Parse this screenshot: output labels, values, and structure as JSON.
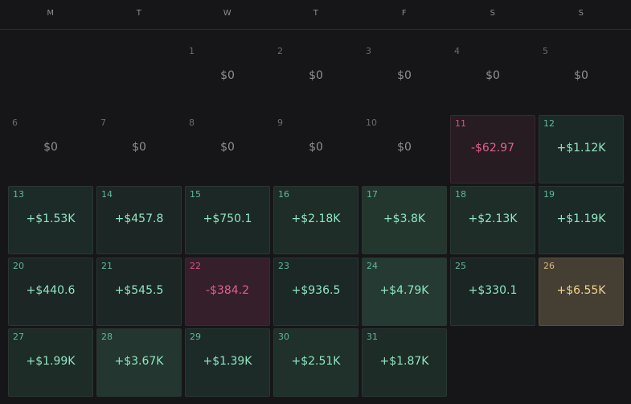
{
  "weekdays": [
    "M",
    "T",
    "W",
    "T",
    "F",
    "S",
    "S"
  ],
  "days": [
    {
      "day": "1",
      "amount": "$0",
      "tone": "zero",
      "bg": "transparent"
    },
    {
      "day": "2",
      "amount": "$0",
      "tone": "zero",
      "bg": "transparent"
    },
    {
      "day": "3",
      "amount": "$0",
      "tone": "zero",
      "bg": "transparent"
    },
    {
      "day": "4",
      "amount": "$0",
      "tone": "zero",
      "bg": "transparent"
    },
    {
      "day": "5",
      "amount": "$0",
      "tone": "zero",
      "bg": "transparent"
    },
    {
      "day": "6",
      "amount": "$0",
      "tone": "zero",
      "bg": "transparent"
    },
    {
      "day": "7",
      "amount": "$0",
      "tone": "zero",
      "bg": "transparent"
    },
    {
      "day": "8",
      "amount": "$0",
      "tone": "zero",
      "bg": "transparent"
    },
    {
      "day": "9",
      "amount": "$0",
      "tone": "zero",
      "bg": "transparent"
    },
    {
      "day": "10",
      "amount": "$0",
      "tone": "zero",
      "bg": "transparent"
    },
    {
      "day": "11",
      "amount": "-$62.97",
      "tone": "neg",
      "bg": "#261c22"
    },
    {
      "day": "12",
      "amount": "+$1.12K",
      "tone": "pos",
      "bg": "#1c2a27"
    },
    {
      "day": "13",
      "amount": "+$1.53K",
      "tone": "pos",
      "bg": "#1d2b28"
    },
    {
      "day": "14",
      "amount": "+$457.8",
      "tone": "pos",
      "bg": "#1c2624"
    },
    {
      "day": "15",
      "amount": "+$750.1",
      "tone": "pos",
      "bg": "#1c2825"
    },
    {
      "day": "16",
      "amount": "+$2.18K",
      "tone": "pos",
      "bg": "#1f2d29"
    },
    {
      "day": "17",
      "amount": "+$3.8K",
      "tone": "pos",
      "bg": "#23372f"
    },
    {
      "day": "18",
      "amount": "+$2.13K",
      "tone": "pos",
      "bg": "#1f2d29"
    },
    {
      "day": "19",
      "amount": "+$1.19K",
      "tone": "pos",
      "bg": "#1c2a27"
    },
    {
      "day": "20",
      "amount": "+$440.6",
      "tone": "pos",
      "bg": "#1c2624"
    },
    {
      "day": "21",
      "amount": "+$545.5",
      "tone": "pos",
      "bg": "#1c2725"
    },
    {
      "day": "22",
      "amount": "-$384.2",
      "tone": "neg",
      "bg": "#351f2b"
    },
    {
      "day": "23",
      "amount": "+$936.5",
      "tone": "pos",
      "bg": "#1c2826"
    },
    {
      "day": "24",
      "amount": "+$4.79K",
      "tone": "pos",
      "bg": "#253a32"
    },
    {
      "day": "25",
      "amount": "+$330.1",
      "tone": "pos",
      "bg": "#1b2523"
    },
    {
      "day": "26",
      "amount": "+$6.55K",
      "tone": "gold",
      "bg": "#453e32"
    },
    {
      "day": "27",
      "amount": "+$1.99K",
      "tone": "pos",
      "bg": "#1e2c28"
    },
    {
      "day": "28",
      "amount": "+$3.67K",
      "tone": "pos",
      "bg": "#23362f"
    },
    {
      "day": "29",
      "amount": "+$1.39K",
      "tone": "pos",
      "bg": "#1d2b28"
    },
    {
      "day": "30",
      "amount": "+$2.51K",
      "tone": "pos",
      "bg": "#20302b"
    },
    {
      "day": "31",
      "amount": "+$1.87K",
      "tone": "pos",
      "bg": "#1e2c28"
    }
  ]
}
